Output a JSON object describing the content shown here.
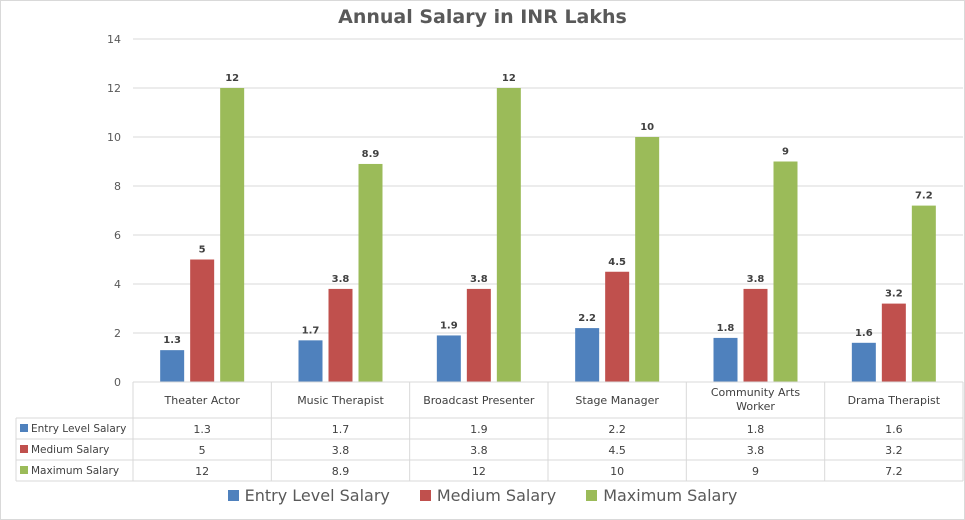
{
  "chart_data": {
    "type": "bar",
    "title": "Annual Salary in INR Lakhs",
    "xlabel": "",
    "ylabel": "",
    "ylim": [
      0,
      14
    ],
    "yticks": [
      "0",
      "2",
      "4",
      "6",
      "8",
      "10",
      "12",
      "14"
    ],
    "grid": true,
    "legend_position": "bottom",
    "categories": [
      "Theater Actor",
      "Music Therapist",
      "Broadcast Presenter",
      "Stage Manager",
      "Community Arts Worker",
      "Drama Therapist"
    ],
    "category_lines": [
      [
        "Theater Actor"
      ],
      [
        "Music Therapist"
      ],
      [
        "Broadcast Presenter"
      ],
      [
        "Stage Manager"
      ],
      [
        "Community Arts",
        "Worker"
      ],
      [
        "Drama Therapist"
      ]
    ],
    "series": [
      {
        "name": "Entry Level Salary",
        "color": "#4f81bd",
        "values": [
          1.3,
          1.7,
          1.9,
          2.2,
          1.8,
          1.6
        ],
        "labels": [
          "1.3",
          "1.7",
          "1.9",
          "2.2",
          "1.8",
          "1.6"
        ]
      },
      {
        "name": "Medium Salary",
        "color": "#c0504d",
        "values": [
          5,
          3.8,
          3.8,
          4.5,
          3.8,
          3.2
        ],
        "labels": [
          "5",
          "3.8",
          "3.8",
          "4.5",
          "3.8",
          "3.2"
        ]
      },
      {
        "name": "Maximum Salary",
        "color": "#9bbb59",
        "values": [
          12,
          8.9,
          12,
          10,
          9,
          7.2
        ],
        "labels": [
          "12",
          "8.9",
          "12",
          "10",
          "9",
          "7.2"
        ]
      }
    ],
    "data_table": true
  }
}
